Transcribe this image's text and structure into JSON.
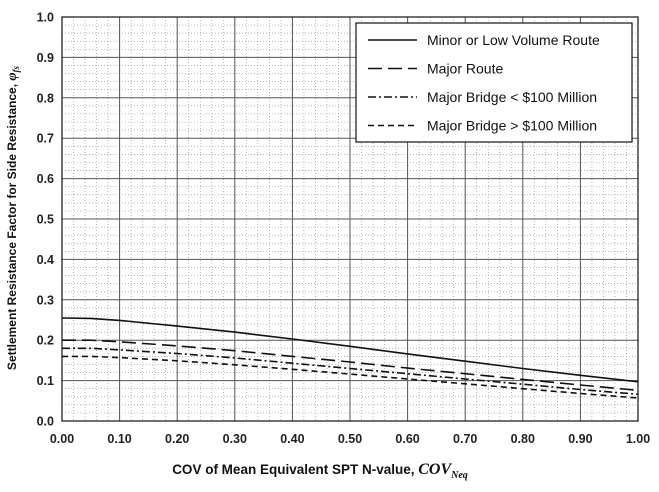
{
  "chart_data": {
    "type": "line",
    "xlabel": "COV of Mean Equivalent SPT N-value, ",
    "xlabel_symbol": "COV",
    "xlabel_subscript": "Neq",
    "ylabel": "Settlement Resistance Factor for Side Resistance, ",
    "ylabel_symbol": "φ",
    "ylabel_subscript": "fs",
    "xlim": [
      0,
      1
    ],
    "ylim": [
      0,
      1
    ],
    "xticks": [
      "0.00",
      "0.10",
      "0.20",
      "0.30",
      "0.40",
      "0.50",
      "0.60",
      "0.70",
      "0.80",
      "0.90",
      "1.00"
    ],
    "yticks": [
      "0.0",
      "0.1",
      "0.2",
      "0.3",
      "0.4",
      "0.5",
      "0.6",
      "0.7",
      "0.8",
      "0.9",
      "1.0"
    ],
    "grid": "major solid, minor dotted",
    "legend_position": "top-right",
    "x": [
      0,
      0.05,
      0.1,
      0.2,
      0.3,
      0.4,
      0.5,
      0.6,
      0.7,
      0.8,
      0.9,
      1.0
    ],
    "series": [
      {
        "name": "Minor or Low Volume Route",
        "dash": "solid",
        "values": [
          0.255,
          0.254,
          0.249,
          0.235,
          0.22,
          0.203,
          0.185,
          0.166,
          0.148,
          0.13,
          0.113,
          0.097
        ]
      },
      {
        "name": "Major Route",
        "dash": "long-dash",
        "values": [
          0.2,
          0.2,
          0.196,
          0.186,
          0.174,
          0.16,
          0.146,
          0.131,
          0.117,
          0.103,
          0.089,
          0.076
        ]
      },
      {
        "name": "Major Bridge < $100 Million",
        "dash": "dash-dot",
        "values": [
          0.18,
          0.18,
          0.176,
          0.167,
          0.156,
          0.143,
          0.13,
          0.117,
          0.104,
          0.091,
          0.078,
          0.066
        ]
      },
      {
        "name": "Major Bridge > $100 Million",
        "dash": "short-dash",
        "values": [
          0.16,
          0.16,
          0.157,
          0.149,
          0.139,
          0.128,
          0.116,
          0.104,
          0.092,
          0.08,
          0.068,
          0.057
        ]
      }
    ]
  }
}
